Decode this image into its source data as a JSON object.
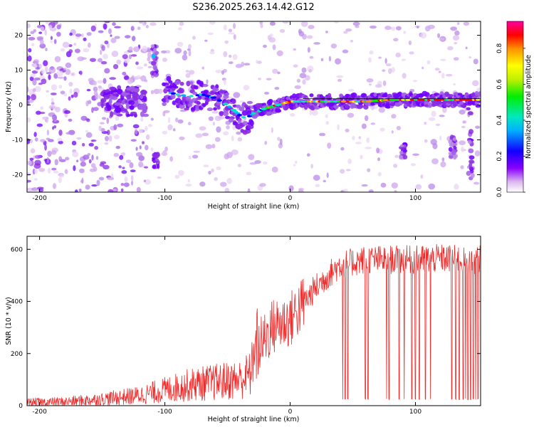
{
  "title": "S236.2025.263.14.42.G12",
  "colors": {
    "snr_line": "#ee2b2b",
    "frame": "#000000",
    "colorbar_stops": [
      "#e4c8ee",
      "#8a00ff",
      "#0000ff",
      "#00b0ff",
      "#00e8c0",
      "#00ee00",
      "#c0f000",
      "#ffff00",
      "#ff9000",
      "#ff0000",
      "#ff00a0"
    ]
  },
  "chart_data": [
    {
      "type": "heatmap",
      "name": "spectrogram",
      "title": "S236.2025.263.14.42.G12",
      "xlabel": "Height of straight line (km)",
      "ylabel": "Frequency (Hz)",
      "xlim": [
        -210,
        152
      ],
      "ylim": [
        -25,
        24
      ],
      "xticks": [
        -200,
        -100,
        0,
        100
      ],
      "xtick_labels": [
        "-200",
        "-100",
        "0",
        "100"
      ],
      "yticks": [
        20,
        10,
        0,
        -10,
        -20
      ],
      "ytick_labels": [
        "20",
        "10",
        "0",
        "-10",
        "-20"
      ],
      "ridge_x": [
        -100,
        -90,
        -80,
        -70,
        -60,
        -50,
        -40,
        -35,
        -30,
        -20,
        -10,
        0,
        10,
        20,
        40,
        60,
        80,
        100,
        120,
        140,
        150
      ],
      "ridge_freq": [
        4,
        3,
        2.5,
        3,
        2,
        0,
        -3,
        -4,
        -2.5,
        -1,
        0,
        1,
        1,
        1,
        1,
        1,
        1.5,
        1.5,
        1.5,
        1.5,
        1.5
      ],
      "colorbar": {
        "label": "Normalized spectral amplitude",
        "range": [
          0,
          0.95
        ],
        "ticks": [
          0.0,
          0.2,
          0.4,
          0.6,
          0.8
        ],
        "tick_labels": [
          "0.0",
          "0.2",
          "0.4",
          "0.6",
          "0.8"
        ]
      }
    },
    {
      "type": "line",
      "name": "snr",
      "xlabel": "Height of straight line (km)",
      "ylabel": "SNR (10 * v/v)",
      "xlim": [
        -210,
        152
      ],
      "ylim": [
        0,
        650
      ],
      "xticks": [
        -200,
        -100,
        0,
        100
      ],
      "xtick_labels": [
        "-200",
        "-100",
        "0",
        "100"
      ],
      "yticks": [
        0,
        200,
        400,
        600
      ],
      "ytick_labels": [
        "0",
        "200",
        "400",
        "600"
      ],
      "series": [
        {
          "name": "SNR",
          "x": [
            -210,
            -180,
            -150,
            -120,
            -100,
            -80,
            -60,
            -40,
            -32,
            -25,
            -15,
            0,
            10,
            20,
            30,
            40,
            60,
            80,
            100,
            120,
            140,
            152
          ],
          "y": [
            12,
            15,
            25,
            40,
            60,
            80,
            90,
            100,
            120,
            220,
            300,
            330,
            390,
            450,
            500,
            540,
            560,
            560,
            560,
            565,
            560,
            560
          ]
        }
      ],
      "dropout_x": [
        42,
        44,
        46,
        60,
        62,
        77,
        79,
        87,
        91,
        97,
        100,
        103,
        108,
        112,
        129,
        132,
        135,
        138,
        140,
        142,
        144,
        146,
        148,
        150
      ]
    }
  ]
}
